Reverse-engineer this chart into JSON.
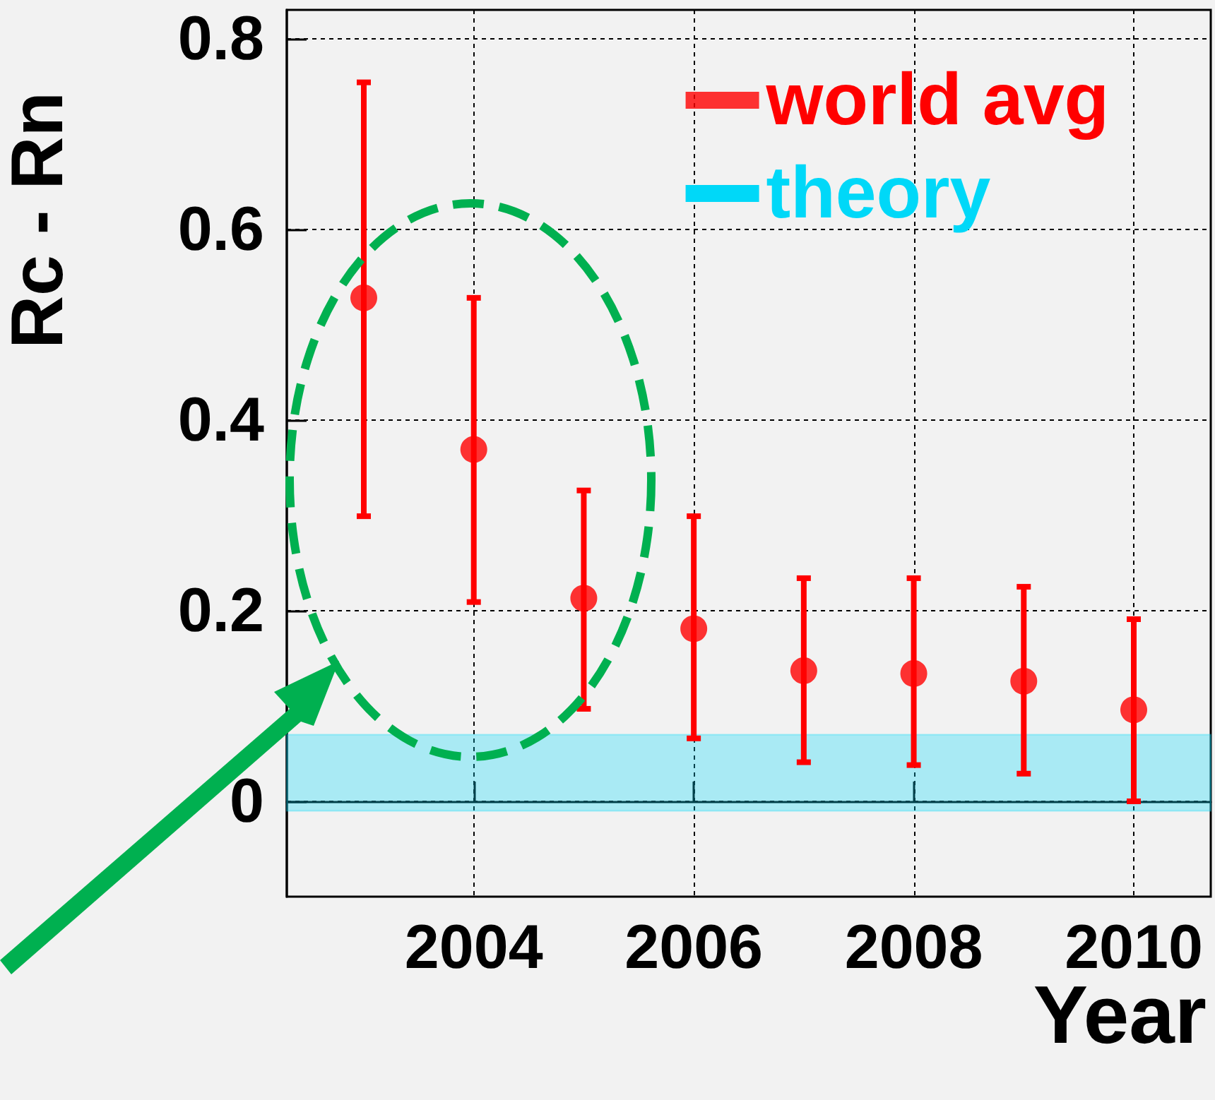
{
  "chart_data": {
    "type": "scatter",
    "xlabel": "Year",
    "ylabel": "Rc - Rn",
    "x": [
      2003,
      2004,
      2005,
      2006,
      2007,
      2008,
      2009,
      2010
    ],
    "series": [
      {
        "name": "world avg",
        "color": "#ff0000",
        "values": [
          0.528,
          0.369,
          0.213,
          0.181,
          0.137,
          0.134,
          0.126,
          0.096
        ],
        "errors": [
          [
            0.299,
            0.754
          ],
          [
            0.209,
            0.528
          ],
          [
            0.097,
            0.326
          ],
          [
            0.066,
            0.299
          ],
          [
            0.041,
            0.234
          ],
          [
            0.038,
            0.234
          ],
          [
            0.029,
            0.225
          ],
          [
            0.0,
            0.191
          ]
        ]
      }
    ],
    "bands": [
      {
        "axis": "y",
        "from": -0.01,
        "to": 0.07,
        "label": "theory",
        "color": "#00d8f8"
      }
    ],
    "xlim": [
      2002.3,
      2010.7
    ],
    "xticks": [
      2004,
      2006,
      2008,
      2010
    ],
    "ylim": [
      -0.1,
      0.83
    ],
    "yticks": [
      0,
      0.2,
      0.4,
      0.6,
      0.8
    ],
    "grid": true,
    "legend": "top right",
    "marker": "circle"
  }
}
